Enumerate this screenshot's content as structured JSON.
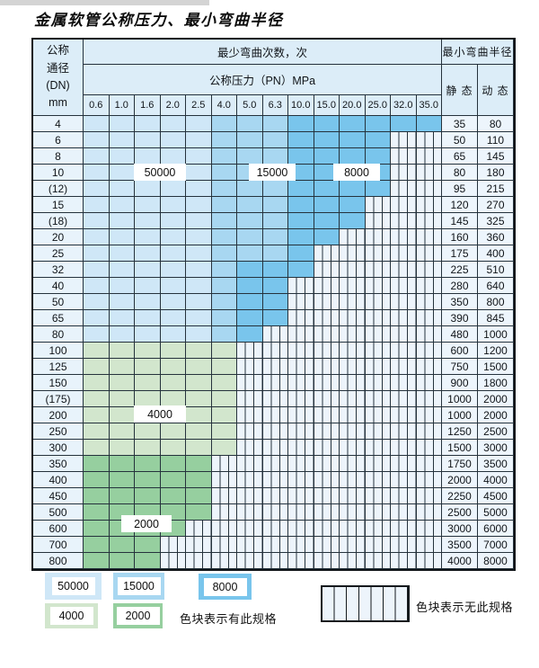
{
  "title": "金属软管公称压力、最小弯曲半径",
  "table": {
    "header": {
      "dn_lines": [
        "公称",
        "通径",
        "(DN)",
        "mm"
      ],
      "bend_times_label": "最少弯曲次数，次",
      "pressure_label": "公称压力（PN）MPa",
      "min_radius_label": "最小弯曲半径",
      "static_label": "静 态",
      "dynamic_label": "动 态"
    }
  },
  "overlay_labels": {
    "b1": "50000",
    "b2": "15000",
    "b3": "8000",
    "g1": "4000",
    "g2": "2000"
  },
  "legend": {
    "items": [
      {
        "label": "50000",
        "category": "b1"
      },
      {
        "label": "15000",
        "category": "b2"
      },
      {
        "label": "8000",
        "category": "b3"
      },
      {
        "label": "4000",
        "category": "g1"
      },
      {
        "label": "2000",
        "category": "g2"
      }
    ],
    "has_spec_text": "色块表示有此规格",
    "no_spec_text": "色块表示无此规格"
  },
  "colors": {
    "b1": "#cfe7f7",
    "b2": "#a8d7f1",
    "b3": "#79c5ec",
    "g1": "#d2e6cd",
    "g2": "#96cf9f",
    "noneBg": "#edf4fb",
    "grid": "#25323c",
    "hdrBg": "#dcedf8",
    "dnBg": "#e8f3fb",
    "valBg": "#edf5fc"
  },
  "chart_data": {
    "type": "table",
    "pn_columns": [
      "0.6",
      "1.0",
      "1.6",
      "2.0",
      "2.5",
      "4.0",
      "5.0",
      "6.3",
      "10.0",
      "15.0",
      "20.0",
      "25.0",
      "32.0",
      "35.0"
    ],
    "cell_categories": {
      "b1": "50000次",
      "b2": "15000次",
      "b3": "8000次",
      "g1": "4000次",
      "g2": "2000次",
      "x": "无此规格"
    },
    "rows": [
      {
        "dn": "4",
        "static": "35",
        "dynamic": "80",
        "cells": [
          "b1",
          "b1",
          "b1",
          "b1",
          "b1",
          "b2",
          "b2",
          "b2",
          "b3",
          "b3",
          "b3",
          "b3",
          "b3",
          "b3"
        ]
      },
      {
        "dn": "6",
        "static": "50",
        "dynamic": "110",
        "cells": [
          "b1",
          "b1",
          "b1",
          "b1",
          "b1",
          "b2",
          "b2",
          "b2",
          "b3",
          "b3",
          "b3",
          "b3",
          "x",
          "x"
        ]
      },
      {
        "dn": "8",
        "static": "65",
        "dynamic": "145",
        "cells": [
          "b1",
          "b1",
          "b1",
          "b1",
          "b1",
          "b2",
          "b2",
          "b2",
          "b3",
          "b3",
          "b3",
          "b3",
          "x",
          "x"
        ]
      },
      {
        "dn": "10",
        "static": "80",
        "dynamic": "180",
        "cells": [
          "b1",
          "b1",
          "b1",
          "b1",
          "b1",
          "b2",
          "b2",
          "b2",
          "b3",
          "b3",
          "b3",
          "b3",
          "x",
          "x"
        ]
      },
      {
        "dn": "(12)",
        "static": "95",
        "dynamic": "215",
        "cells": [
          "b1",
          "b1",
          "b1",
          "b1",
          "b1",
          "b2",
          "b2",
          "b2",
          "b3",
          "b3",
          "b3",
          "b3",
          "x",
          "x"
        ]
      },
      {
        "dn": "15",
        "static": "120",
        "dynamic": "270",
        "cells": [
          "b1",
          "b1",
          "b1",
          "b1",
          "b1",
          "b2",
          "b2",
          "b2",
          "b3",
          "b3",
          "b3",
          "x",
          "x",
          "x"
        ]
      },
      {
        "dn": "(18)",
        "static": "145",
        "dynamic": "325",
        "cells": [
          "b1",
          "b1",
          "b1",
          "b1",
          "b1",
          "b2",
          "b2",
          "b2",
          "b3",
          "b3",
          "b3",
          "x",
          "x",
          "x"
        ]
      },
      {
        "dn": "20",
        "static": "160",
        "dynamic": "360",
        "cells": [
          "b1",
          "b1",
          "b1",
          "b1",
          "b1",
          "b2",
          "b2",
          "b2",
          "b3",
          "b3",
          "x",
          "x",
          "x",
          "x"
        ]
      },
      {
        "dn": "25",
        "static": "175",
        "dynamic": "400",
        "cells": [
          "b1",
          "b1",
          "b1",
          "b1",
          "b1",
          "b2",
          "b2",
          "b2",
          "b3",
          "x",
          "x",
          "x",
          "x",
          "x"
        ]
      },
      {
        "dn": "32",
        "static": "225",
        "dynamic": "510",
        "cells": [
          "b1",
          "b1",
          "b1",
          "b1",
          "b1",
          "b2",
          "b3",
          "b3",
          "b3",
          "x",
          "x",
          "x",
          "x",
          "x"
        ]
      },
      {
        "dn": "40",
        "static": "280",
        "dynamic": "640",
        "cells": [
          "b1",
          "b1",
          "b1",
          "b1",
          "b1",
          "b2",
          "b3",
          "b3",
          "x",
          "x",
          "x",
          "x",
          "x",
          "x"
        ]
      },
      {
        "dn": "50",
        "static": "350",
        "dynamic": "800",
        "cells": [
          "b1",
          "b1",
          "b1",
          "b1",
          "b1",
          "b2",
          "b3",
          "b3",
          "x",
          "x",
          "x",
          "x",
          "x",
          "x"
        ]
      },
      {
        "dn": "65",
        "static": "390",
        "dynamic": "845",
        "cells": [
          "b1",
          "b1",
          "b1",
          "b1",
          "b1",
          "b2",
          "b3",
          "b3",
          "x",
          "x",
          "x",
          "x",
          "x",
          "x"
        ]
      },
      {
        "dn": "80",
        "static": "480",
        "dynamic": "1000",
        "cells": [
          "b1",
          "b1",
          "b1",
          "b1",
          "b1",
          "b2",
          "b3",
          "x",
          "x",
          "x",
          "x",
          "x",
          "x",
          "x"
        ]
      },
      {
        "dn": "100",
        "static": "600",
        "dynamic": "1200",
        "cells": [
          "g1",
          "g1",
          "g1",
          "g1",
          "g1",
          "g1",
          "x",
          "x",
          "x",
          "x",
          "x",
          "x",
          "x",
          "x"
        ]
      },
      {
        "dn": "125",
        "static": "750",
        "dynamic": "1500",
        "cells": [
          "g1",
          "g1",
          "g1",
          "g1",
          "g1",
          "g1",
          "x",
          "x",
          "x",
          "x",
          "x",
          "x",
          "x",
          "x"
        ]
      },
      {
        "dn": "150",
        "static": "900",
        "dynamic": "1800",
        "cells": [
          "g1",
          "g1",
          "g1",
          "g1",
          "g1",
          "g1",
          "x",
          "x",
          "x",
          "x",
          "x",
          "x",
          "x",
          "x"
        ]
      },
      {
        "dn": "(175)",
        "static": "1000",
        "dynamic": "2000",
        "cells": [
          "g1",
          "g1",
          "g1",
          "g1",
          "g1",
          "g1",
          "x",
          "x",
          "x",
          "x",
          "x",
          "x",
          "x",
          "x"
        ]
      },
      {
        "dn": "200",
        "static": "1000",
        "dynamic": "2000",
        "cells": [
          "g1",
          "g1",
          "g1",
          "g1",
          "g1",
          "g1",
          "x",
          "x",
          "x",
          "x",
          "x",
          "x",
          "x",
          "x"
        ]
      },
      {
        "dn": "250",
        "static": "1250",
        "dynamic": "2500",
        "cells": [
          "g1",
          "g1",
          "g1",
          "g1",
          "g1",
          "g1",
          "x",
          "x",
          "x",
          "x",
          "x",
          "x",
          "x",
          "x"
        ]
      },
      {
        "dn": "300",
        "static": "1500",
        "dynamic": "3000",
        "cells": [
          "g1",
          "g1",
          "g1",
          "g1",
          "g1",
          "g1",
          "x",
          "x",
          "x",
          "x",
          "x",
          "x",
          "x",
          "x"
        ]
      },
      {
        "dn": "350",
        "static": "1750",
        "dynamic": "3500",
        "cells": [
          "g2",
          "g2",
          "g2",
          "g2",
          "g2",
          "x",
          "x",
          "x",
          "x",
          "x",
          "x",
          "x",
          "x",
          "x"
        ]
      },
      {
        "dn": "400",
        "static": "2000",
        "dynamic": "4000",
        "cells": [
          "g2",
          "g2",
          "g2",
          "g2",
          "g2",
          "x",
          "x",
          "x",
          "x",
          "x",
          "x",
          "x",
          "x",
          "x"
        ]
      },
      {
        "dn": "450",
        "static": "2250",
        "dynamic": "4500",
        "cells": [
          "g2",
          "g2",
          "g2",
          "g2",
          "g2",
          "x",
          "x",
          "x",
          "x",
          "x",
          "x",
          "x",
          "x",
          "x"
        ]
      },
      {
        "dn": "500",
        "static": "2500",
        "dynamic": "5000",
        "cells": [
          "g2",
          "g2",
          "g2",
          "g2",
          "g2",
          "x",
          "x",
          "x",
          "x",
          "x",
          "x",
          "x",
          "x",
          "x"
        ]
      },
      {
        "dn": "600",
        "static": "3000",
        "dynamic": "6000",
        "cells": [
          "g2",
          "g2",
          "g2",
          "g2",
          "x",
          "x",
          "x",
          "x",
          "x",
          "x",
          "x",
          "x",
          "x",
          "x"
        ]
      },
      {
        "dn": "700",
        "static": "3500",
        "dynamic": "7000",
        "cells": [
          "g2",
          "g2",
          "g2",
          "x",
          "x",
          "x",
          "x",
          "x",
          "x",
          "x",
          "x",
          "x",
          "x",
          "x"
        ]
      },
      {
        "dn": "800",
        "static": "4000",
        "dynamic": "8000",
        "cells": [
          "g2",
          "g2",
          "g2",
          "x",
          "x",
          "x",
          "x",
          "x",
          "x",
          "x",
          "x",
          "x",
          "x",
          "x"
        ]
      }
    ]
  }
}
